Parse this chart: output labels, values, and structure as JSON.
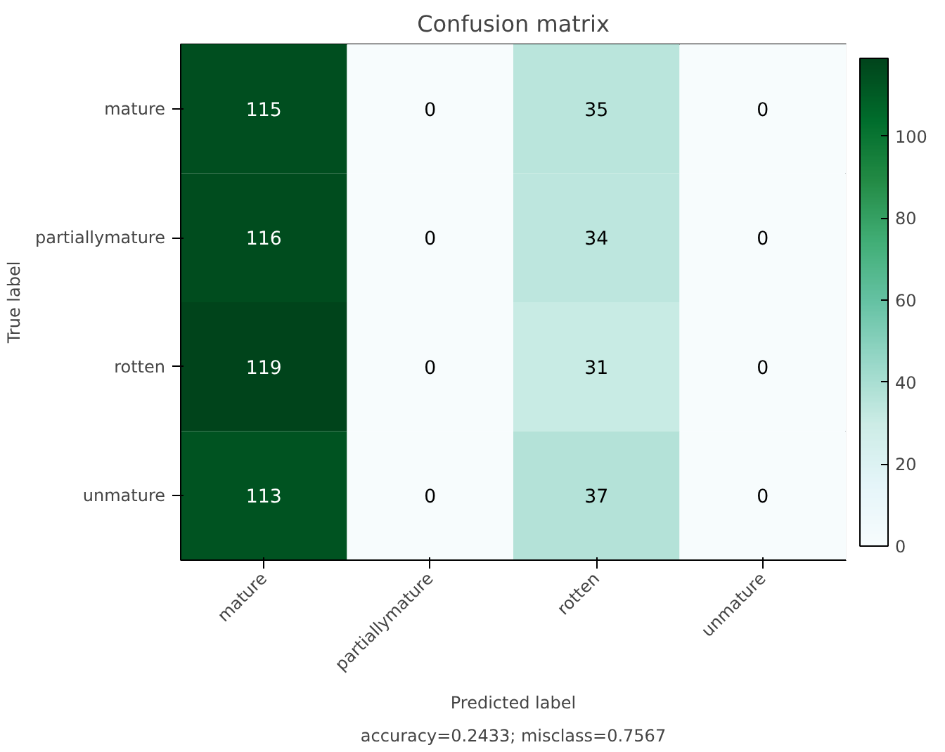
{
  "chart_data": {
    "type": "heatmap",
    "title": "Confusion matrix",
    "xlabel": "Predicted label",
    "ylabel": "True label",
    "categories": [
      "mature",
      "partiallymature",
      "rotten",
      "unmature"
    ],
    "y_categories": [
      "mature",
      "partiallymature",
      "rotten",
      "unmature"
    ],
    "cells": [
      [
        115,
        0,
        35,
        0
      ],
      [
        116,
        0,
        34,
        0
      ],
      [
        119,
        0,
        31,
        0
      ],
      [
        113,
        0,
        37,
        0
      ]
    ],
    "clim": [
      0,
      119
    ],
    "cticks": [
      0,
      20,
      40,
      60,
      80,
      100
    ],
    "data_labels": true,
    "annotations": [
      "accuracy=0.2433; misclass=0.7567"
    ]
  }
}
